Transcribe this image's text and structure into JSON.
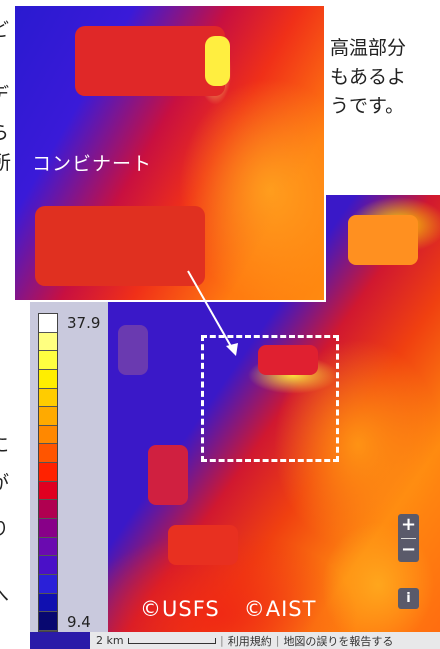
{
  "inset_label": "コンビナート",
  "note_lines": [
    "高温部分",
    "もあるよ",
    "うです。"
  ],
  "legend": {
    "max_label": "37.9",
    "min_label": "9.4",
    "colors": [
      "#ffffff",
      "#ffff80",
      "#ffff40",
      "#ffee00",
      "#ffcc00",
      "#ffaa00",
      "#ff8800",
      "#ff5500",
      "#ff2200",
      "#e00020",
      "#b00050",
      "#880088",
      "#6a0ab0",
      "#4a10c8",
      "#2a20d8",
      "#1010b0",
      "#080870"
    ]
  },
  "map_credits": [
    "©USFS",
    "©AIST"
  ],
  "controls": {
    "zoom_in": "+",
    "zoom_out": "−",
    "info": "i"
  },
  "footer": {
    "scale_label": "2 km",
    "terms": "利用規約",
    "report": "地図の誤りを報告する"
  },
  "left_edge_glyphs": [
    "ど",
    "デ",
    "ら",
    "所",
    "に",
    "が",
    "り",
    "へ"
  ]
}
